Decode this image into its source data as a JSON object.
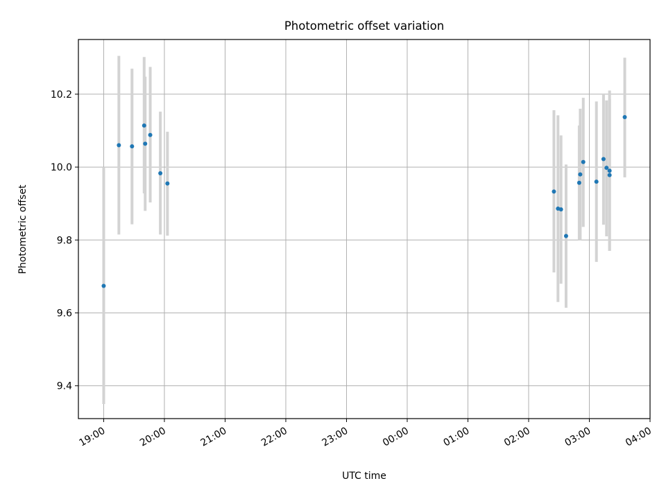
{
  "chart_data": {
    "type": "scatter",
    "title": "Photometric offset variation",
    "xlabel": "UTC time",
    "ylabel": "Photometric offset",
    "x_ticks": [
      "19:00",
      "20:00",
      "21:00",
      "22:00",
      "23:00",
      "00:00",
      "01:00",
      "02:00",
      "03:00",
      "04:00"
    ],
    "y_ticks": [
      "9.4",
      "9.6",
      "9.8",
      "10.0",
      "10.2"
    ],
    "x_range": [
      "18:35",
      "04:00"
    ],
    "ylim": [
      9.31,
      10.35
    ],
    "grid": true,
    "legend": "none",
    "colors": {
      "point": "#1f77b4",
      "errorbar": "#d3d3d3",
      "grid": "#b0b0b0"
    },
    "points": [
      {
        "time": "19:00",
        "y": 9.674,
        "ylow": 9.35,
        "yhigh": 10.0
      },
      {
        "time": "19:15",
        "y": 10.06,
        "ylow": 9.815,
        "yhigh": 10.305
      },
      {
        "time": "19:28",
        "y": 10.057,
        "ylow": 9.843,
        "yhigh": 10.27
      },
      {
        "time": "19:40",
        "y": 10.114,
        "ylow": 9.928,
        "yhigh": 10.302
      },
      {
        "time": "19:41",
        "y": 10.064,
        "ylow": 9.88,
        "yhigh": 10.248
      },
      {
        "time": "19:46",
        "y": 10.088,
        "ylow": 9.903,
        "yhigh": 10.275
      },
      {
        "time": "19:56",
        "y": 9.983,
        "ylow": 9.815,
        "yhigh": 10.152
      },
      {
        "time": "20:03",
        "y": 9.955,
        "ylow": 9.812,
        "yhigh": 10.097
      },
      {
        "time": "02:25",
        "y": 9.933,
        "ylow": 9.711,
        "yhigh": 10.156
      },
      {
        "time": "02:29",
        "y": 9.886,
        "ylow": 9.63,
        "yhigh": 10.142
      },
      {
        "time": "02:32",
        "y": 9.884,
        "ylow": 9.68,
        "yhigh": 10.087
      },
      {
        "time": "02:37",
        "y": 9.811,
        "ylow": 9.614,
        "yhigh": 10.007
      },
      {
        "time": "02:50",
        "y": 9.957,
        "ylow": 9.8,
        "yhigh": 10.114
      },
      {
        "time": "02:51",
        "y": 9.98,
        "ylow": 9.8,
        "yhigh": 10.16
      },
      {
        "time": "02:54",
        "y": 10.014,
        "ylow": 9.836,
        "yhigh": 10.19
      },
      {
        "time": "03:07",
        "y": 9.96,
        "ylow": 9.74,
        "yhigh": 10.18
      },
      {
        "time": "03:14",
        "y": 10.022,
        "ylow": 9.842,
        "yhigh": 10.202
      },
      {
        "time": "03:17",
        "y": 9.998,
        "ylow": 9.81,
        "yhigh": 10.183
      },
      {
        "time": "03:20",
        "y": 9.978,
        "ylow": 9.77,
        "yhigh": 10.186
      },
      {
        "time": "03:20",
        "y": 9.99,
        "ylow": 9.77,
        "yhigh": 10.21
      },
      {
        "time": "03:35",
        "y": 10.137,
        "ylow": 9.972,
        "yhigh": 10.3
      }
    ]
  }
}
